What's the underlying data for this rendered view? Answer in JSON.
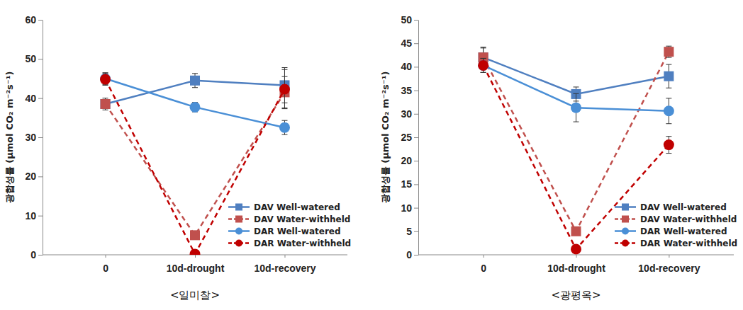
{
  "chart_data": [
    {
      "type": "line",
      "title": "<일미찰>",
      "y_label": "광합성률 (μmol CO₂ m⁻²s⁻¹)",
      "categories": [
        "0",
        "10d-drought",
        "10d-recovery"
      ],
      "ylim": [
        0,
        60
      ],
      "yticks": [
        0,
        10,
        20,
        30,
        40,
        50,
        60
      ],
      "legend": "lower right",
      "series": [
        {
          "name": "DAV Well-watered",
          "color": "#4f7fc0",
          "marker": "square",
          "line_style": "solid",
          "values": [
            38.5,
            44.5,
            43.3
          ],
          "errors": [
            1.0,
            1.8,
            4.5
          ]
        },
        {
          "name": "DAV Water-withheld",
          "color": "#c0504d",
          "marker": "square",
          "line_style": "dashed",
          "values": [
            38.5,
            5.0,
            41.5
          ],
          "errors": [
            1.5,
            0.5,
            4.0
          ]
        },
        {
          "name": "DAR Well-watered",
          "color": "#4a8fd6",
          "marker": "circle",
          "line_style": "solid",
          "values": [
            45.0,
            37.7,
            32.5
          ],
          "errors": [
            1.5,
            1.2,
            1.8
          ]
        },
        {
          "name": "DAR Water-withheld",
          "color": "#c00000",
          "marker": "circle",
          "line_style": "dashed",
          "values": [
            44.8,
            0.2,
            42.3
          ],
          "errors": [
            1.5,
            0.3,
            5.0
          ]
        }
      ]
    },
    {
      "type": "line",
      "title": "<광평옥>",
      "y_label": "광합성률 (μmol CO₂ m⁻²s⁻¹)",
      "categories": [
        "0",
        "10d-drought",
        "10d-recovery"
      ],
      "ylim": [
        0,
        50
      ],
      "yticks": [
        0,
        5,
        10,
        15,
        20,
        25,
        30,
        35,
        40,
        45,
        50
      ],
      "legend": "lower right",
      "series": [
        {
          "name": "DAV Well-watered",
          "color": "#4f7fc0",
          "marker": "square",
          "line_style": "solid",
          "values": [
            42.0,
            34.2,
            38.0
          ],
          "errors": [
            2.2,
            1.5,
            2.5
          ]
        },
        {
          "name": "DAV Water-withheld",
          "color": "#c0504d",
          "marker": "square",
          "line_style": "dashed",
          "values": [
            42.0,
            5.0,
            43.2
          ],
          "errors": [
            2.0,
            0.5,
            1.2
          ]
        },
        {
          "name": "DAR Well-watered",
          "color": "#4a8fd6",
          "marker": "circle",
          "line_style": "solid",
          "values": [
            40.3,
            31.3,
            30.6
          ],
          "errors": [
            1.5,
            3.0,
            2.7
          ]
        },
        {
          "name": "DAR Water-withheld",
          "color": "#c00000",
          "marker": "circle",
          "line_style": "dashed",
          "values": [
            40.3,
            1.2,
            23.4
          ],
          "errors": [
            1.5,
            0.3,
            1.8
          ]
        }
      ]
    }
  ]
}
